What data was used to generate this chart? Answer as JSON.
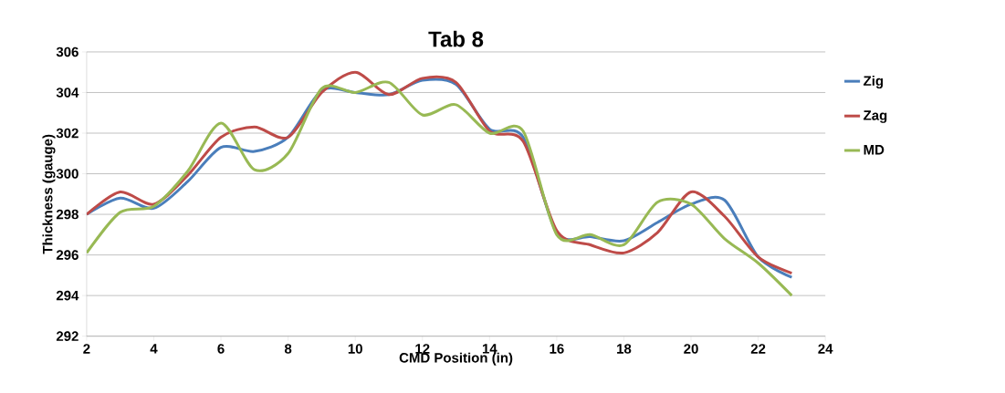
{
  "chart_data": {
    "type": "line",
    "title": "Tab 8",
    "xlabel": "CMD Position (in)",
    "ylabel": "Thickness (gauge)",
    "x": [
      2,
      3,
      4,
      5,
      6,
      7,
      8,
      9,
      10,
      11,
      12,
      13,
      14,
      15,
      16,
      17,
      18,
      19,
      20,
      21,
      22,
      23
    ],
    "series": [
      {
        "name": "Zig",
        "color": "#4a7ebb",
        "values": [
          298,
          298.8,
          298.3,
          299.6,
          301.3,
          301.1,
          301.8,
          304.1,
          304.0,
          303.9,
          304.6,
          304.4,
          302.2,
          301.8,
          297.1,
          296.9,
          296.7,
          297.6,
          298.5,
          298.7,
          295.9,
          294.9
        ]
      },
      {
        "name": "Zag",
        "color": "#be4b48",
        "values": [
          298,
          299.1,
          298.5,
          299.9,
          301.8,
          302.3,
          301.8,
          304.0,
          305.0,
          303.9,
          304.7,
          304.5,
          302.1,
          301.6,
          297.2,
          296.5,
          296.1,
          297.1,
          299.1,
          297.9,
          295.9,
          295.1
        ]
      },
      {
        "name": "MD",
        "color": "#98b954",
        "values": [
          296.1,
          298.1,
          298.4,
          300.1,
          302.5,
          300.2,
          301.0,
          304.2,
          304.0,
          304.5,
          302.9,
          303.4,
          302.0,
          302.1,
          297.0,
          297.0,
          296.5,
          298.6,
          298.5,
          296.8,
          295.6,
          294.0
        ]
      }
    ],
    "xlim": [
      2,
      24
    ],
    "xticks": [
      2,
      4,
      6,
      8,
      10,
      12,
      14,
      16,
      18,
      20,
      22,
      24
    ],
    "ylim": [
      292,
      306
    ],
    "yticks": [
      292,
      294,
      296,
      298,
      300,
      302,
      304,
      306
    ],
    "grid": "y",
    "legend": "right",
    "marker": "none",
    "line_style": "solid"
  }
}
